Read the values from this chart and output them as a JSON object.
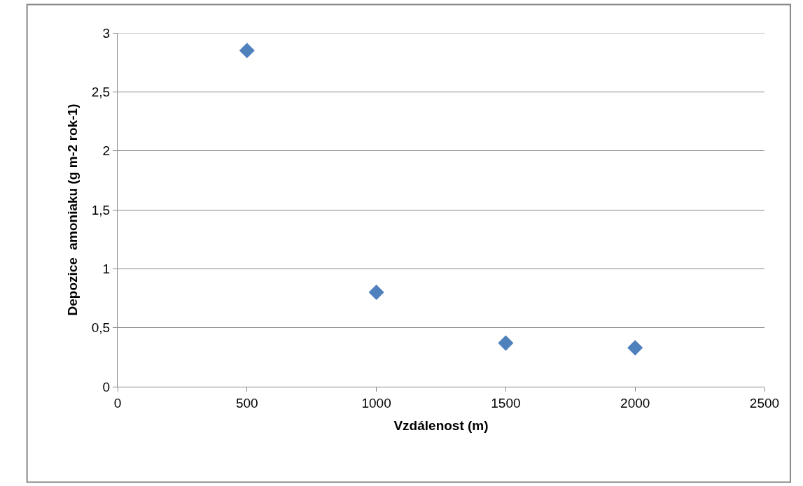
{
  "chart_data": {
    "type": "scatter",
    "xlabel": "Vzdálenost (m)",
    "ylabel": "Depozice  amoniaku (g m-2 rok-1)",
    "x": [
      500,
      1000,
      1500,
      2000
    ],
    "series": [
      {
        "color": "#4f81bd",
        "values": [
          2.85,
          0.8,
          0.37,
          0.33
        ]
      }
    ],
    "xlim": [
      0,
      2500
    ],
    "xticks": [
      0,
      500,
      1000,
      1500,
      2000,
      2500
    ],
    "ylim": [
      0,
      3
    ],
    "yticks": [
      0,
      {
        "value": 0.5,
        "label": "0,5"
      },
      1,
      {
        "value": 1.5,
        "label": "1,5"
      },
      2,
      {
        "value": 2.5,
        "label": "2,5"
      },
      3
    ],
    "grid": "y",
    "marker": "diamond",
    "legend": false
  }
}
